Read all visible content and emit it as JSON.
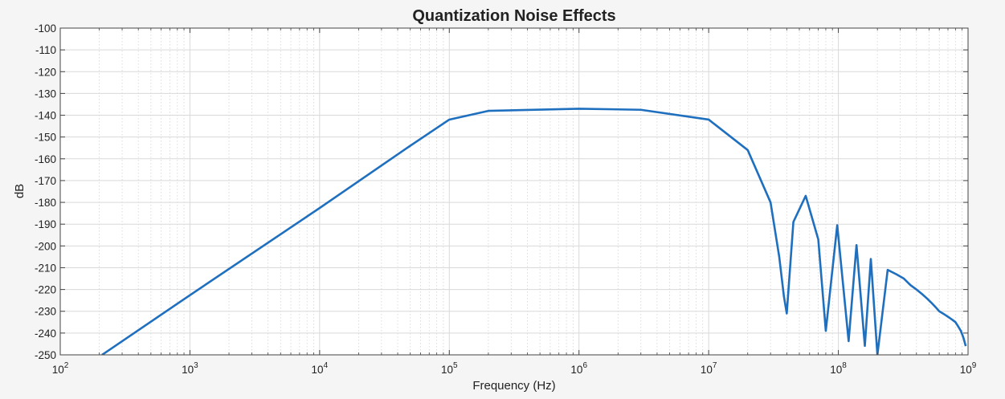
{
  "chart_data": {
    "type": "line",
    "title": "Quantization Noise Effects",
    "xlabel": "Frequency (Hz)",
    "ylabel": "dB",
    "x_scale": "log",
    "xlim": [
      100,
      1000000000
    ],
    "ylim": [
      -250,
      -100
    ],
    "grid": true,
    "minor_grid": true,
    "x_tick_labels": [
      {
        "base": "10",
        "exp": "2"
      },
      {
        "base": "10",
        "exp": "3"
      },
      {
        "base": "10",
        "exp": "4"
      },
      {
        "base": "10",
        "exp": "5"
      },
      {
        "base": "10",
        "exp": "6"
      },
      {
        "base": "10",
        "exp": "7"
      },
      {
        "base": "10",
        "exp": "8"
      },
      {
        "base": "10",
        "exp": "9"
      }
    ],
    "y_tick_labels": [
      "-100",
      "-110",
      "-120",
      "-130",
      "-140",
      "-150",
      "-160",
      "-170",
      "-180",
      "-190",
      "-200",
      "-210",
      "-220",
      "-230",
      "-240",
      "-250"
    ],
    "series": [
      {
        "color": "#1f6fbf",
        "x": [
          210,
          1000,
          10000,
          50000,
          100000,
          200000,
          1000000,
          3000000,
          10000000,
          20000000,
          30000000,
          35000000,
          38000000,
          40000000,
          45000000,
          56000000,
          70000000,
          80000000,
          98000000,
          120000000,
          138000000,
          160000000,
          178000000,
          200000000,
          240000000,
          280000000,
          320000000,
          360000000,
          400000000,
          440000000,
          480000000,
          520000000,
          560000000,
          600000000,
          640000000,
          680000000,
          720000000,
          760000000,
          800000000,
          840000000,
          880000000,
          920000000,
          960000000
        ],
        "y": [
          -250,
          -222.6,
          -182.6,
          -154,
          -142,
          -138,
          -137,
          -137.5,
          -142,
          -156,
          -180,
          -205,
          -223,
          -231,
          -189,
          -177,
          -197,
          -239,
          -190.5,
          -243.7,
          -199.6,
          -245.9,
          -206,
          -250,
          -211,
          -213,
          -215,
          -218,
          -220,
          -222,
          -224,
          -226,
          -228,
          -230,
          -231,
          -232,
          -233,
          -234,
          -235,
          -237,
          -239,
          -242,
          -246
        ]
      }
    ]
  }
}
